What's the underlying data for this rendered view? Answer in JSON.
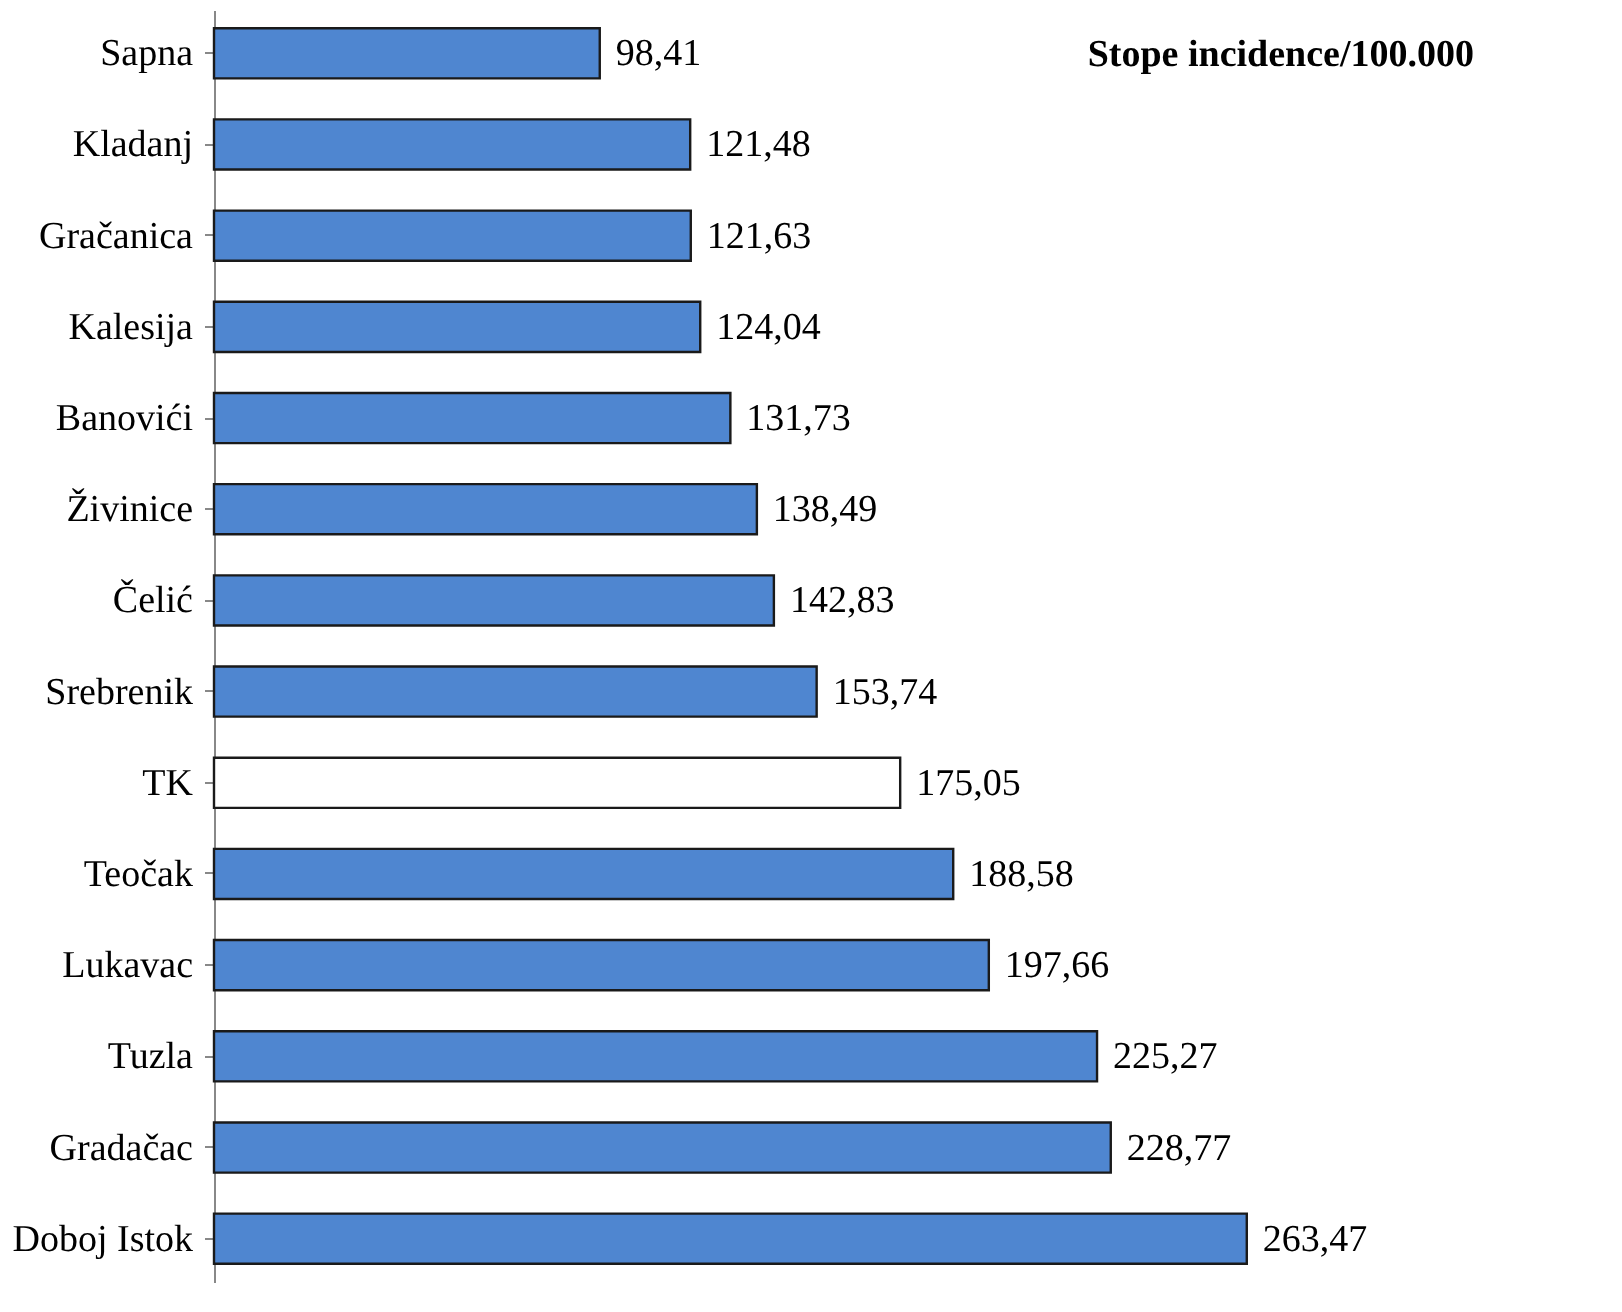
{
  "chart_data": {
    "type": "bar",
    "orientation": "horizontal",
    "title": "Stope incidence/100.000",
    "categories": [
      "Sapna",
      "Kladanj",
      "Gračanica",
      "Kalesija",
      "Banovići",
      "Živinice",
      "Čelić",
      "Srebrenik",
      "TK",
      "Teočak",
      "Lukavac",
      "Tuzla",
      "Gradačac",
      "Doboj Istok"
    ],
    "values": [
      98.41,
      121.48,
      121.63,
      124.04,
      131.73,
      138.49,
      142.83,
      153.74,
      175.05,
      188.58,
      197.66,
      225.27,
      228.77,
      263.47
    ],
    "value_labels": [
      "98,41",
      "121,48",
      "121,63",
      "124,04",
      "131,73",
      "138,49",
      "142,83",
      "153,74",
      "175,05",
      "188,58",
      "197,66",
      "225,27",
      "228,77",
      "263,47"
    ],
    "colors": [
      "#4f86d0",
      "#4f86d0",
      "#4f86d0",
      "#4f86d0",
      "#4f86d0",
      "#4f86d0",
      "#4f86d0",
      "#4f86d0",
      "#ffffff",
      "#4f86d0",
      "#4f86d0",
      "#4f86d0",
      "#4f86d0",
      "#4f86d0"
    ],
    "grid": false
  }
}
